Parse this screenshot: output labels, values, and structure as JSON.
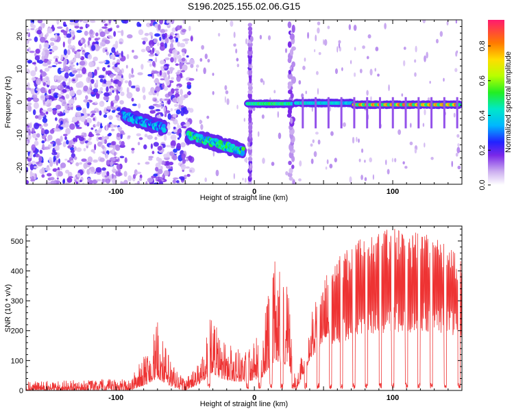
{
  "chart_data": [
    {
      "type": "heatmap",
      "title": "S196.2025.155.02.06.G15",
      "xlabel": "Height of straight line (km)",
      "ylabel": "Frequency (Hz)",
      "xlim": [
        -165,
        150
      ],
      "ylim": [
        -25,
        25
      ],
      "xticks": [
        -100,
        0,
        100
      ],
      "yticks": [
        20,
        10,
        0,
        -10,
        -20
      ],
      "colorbar": {
        "label": "Normalized spectral amplitude",
        "ticks": [
          0.0,
          0.2,
          0.4,
          0.6,
          0.8
        ],
        "range": [
          0,
          0.95
        ]
      },
      "features": [
        {
          "x_range": [
            -165,
            -45
          ],
          "freq": null,
          "amplitude": 0.15,
          "kind": "broadband noise"
        },
        {
          "x_range": [
            -95,
            -65
          ],
          "freq_range": [
            -8,
            -4
          ],
          "amplitude": 0.35
        },
        {
          "x_range": [
            -48,
            -8
          ],
          "freq_range": [
            -15,
            -10
          ],
          "amplitude": 0.45
        },
        {
          "x_range": [
            -5,
            27
          ],
          "freq": -0.5,
          "amplitude": 0.55
        },
        {
          "x_range": [
            30,
            72
          ],
          "freq": -0.3,
          "amplitude": 0.45
        },
        {
          "x_range": [
            72,
            148
          ],
          "freq": -0.8,
          "amplitude": 0.9
        }
      ]
    },
    {
      "type": "line",
      "xlabel": "Height of straight line (km)",
      "ylabel": "SNR (10 * v/v)",
      "xlim": [
        -165,
        150
      ],
      "ylim": [
        0,
        550
      ],
      "xticks": [
        -100,
        0,
        100
      ],
      "yticks": [
        0,
        100,
        200,
        300,
        400,
        500
      ],
      "color": "#ee3333",
      "envelope": [
        {
          "x": -165,
          "low": 0,
          "high": 30
        },
        {
          "x": -90,
          "low": 0,
          "high": 40
        },
        {
          "x": -78,
          "low": 20,
          "high": 130
        },
        {
          "x": -70,
          "low": 40,
          "high": 230
        },
        {
          "x": -60,
          "low": 10,
          "high": 100
        },
        {
          "x": -50,
          "low": 0,
          "high": 40
        },
        {
          "x": -40,
          "low": 20,
          "high": 90
        },
        {
          "x": -30,
          "low": 60,
          "high": 280
        },
        {
          "x": -25,
          "low": 40,
          "high": 170
        },
        {
          "x": -15,
          "low": 30,
          "high": 160
        },
        {
          "x": -5,
          "low": 30,
          "high": 130
        },
        {
          "x": 5,
          "low": 40,
          "high": 200
        },
        {
          "x": 15,
          "low": 100,
          "high": 450
        },
        {
          "x": 25,
          "low": 80,
          "high": 360
        },
        {
          "x": 30,
          "low": 0,
          "high": 30
        },
        {
          "x": 40,
          "low": 100,
          "high": 250
        },
        {
          "x": 55,
          "low": 200,
          "high": 420
        },
        {
          "x": 75,
          "low": 260,
          "high": 510
        },
        {
          "x": 100,
          "low": 280,
          "high": 545
        },
        {
          "x": 130,
          "low": 270,
          "high": 520
        },
        {
          "x": 150,
          "low": 250,
          "high": 440
        }
      ],
      "dropouts_x": [
        -33,
        -5,
        4,
        12,
        20,
        28,
        37,
        46,
        55,
        63,
        72,
        81,
        91,
        100,
        110,
        119,
        128,
        138,
        148
      ]
    }
  ]
}
